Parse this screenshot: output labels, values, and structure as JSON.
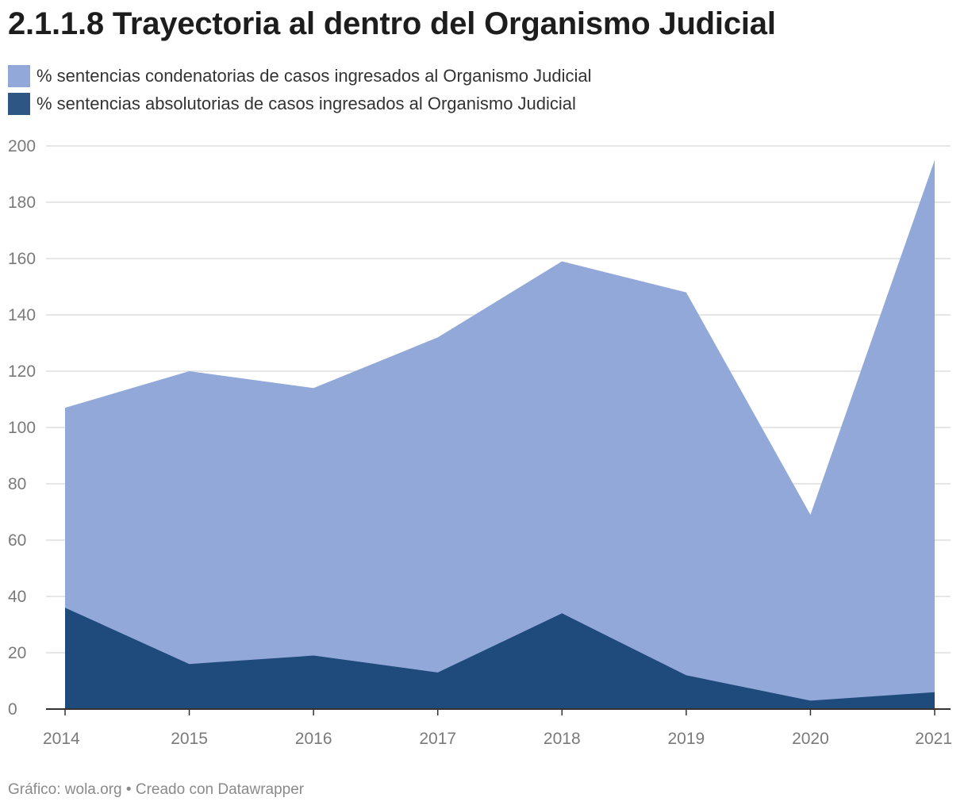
{
  "title": "2.1.1.8 Trayectoria al dentro del Organismo Judicial",
  "footer": {
    "source_label": "Gráfico: wola.org",
    "separator": " • ",
    "credit": "Creado con Datawrapper"
  },
  "colors": {
    "condenatorias": "#91a8d8",
    "absolutorias": "#1f4a7c",
    "grid": "#dddddd",
    "axis": "#333333"
  },
  "chart_data": {
    "type": "area",
    "x": [
      "2014",
      "2015",
      "2016",
      "2017",
      "2018",
      "2019",
      "2020",
      "2021"
    ],
    "series": [
      {
        "name": "% sentencias condenatorias de casos ingresados al Organismo Judicial",
        "values": [
          107,
          120,
          114,
          132,
          159,
          148,
          69,
          195
        ]
      },
      {
        "name": "% sentencias absolutorias de casos ingresados al Organismo Judicial",
        "values": [
          36,
          16,
          19,
          13,
          34,
          12,
          3,
          6
        ]
      }
    ],
    "yticks": [
      0,
      20,
      40,
      60,
      80,
      100,
      120,
      140,
      160,
      180,
      200
    ],
    "ylim": [
      0,
      200
    ],
    "grid": true,
    "legend_position": "top-left"
  }
}
